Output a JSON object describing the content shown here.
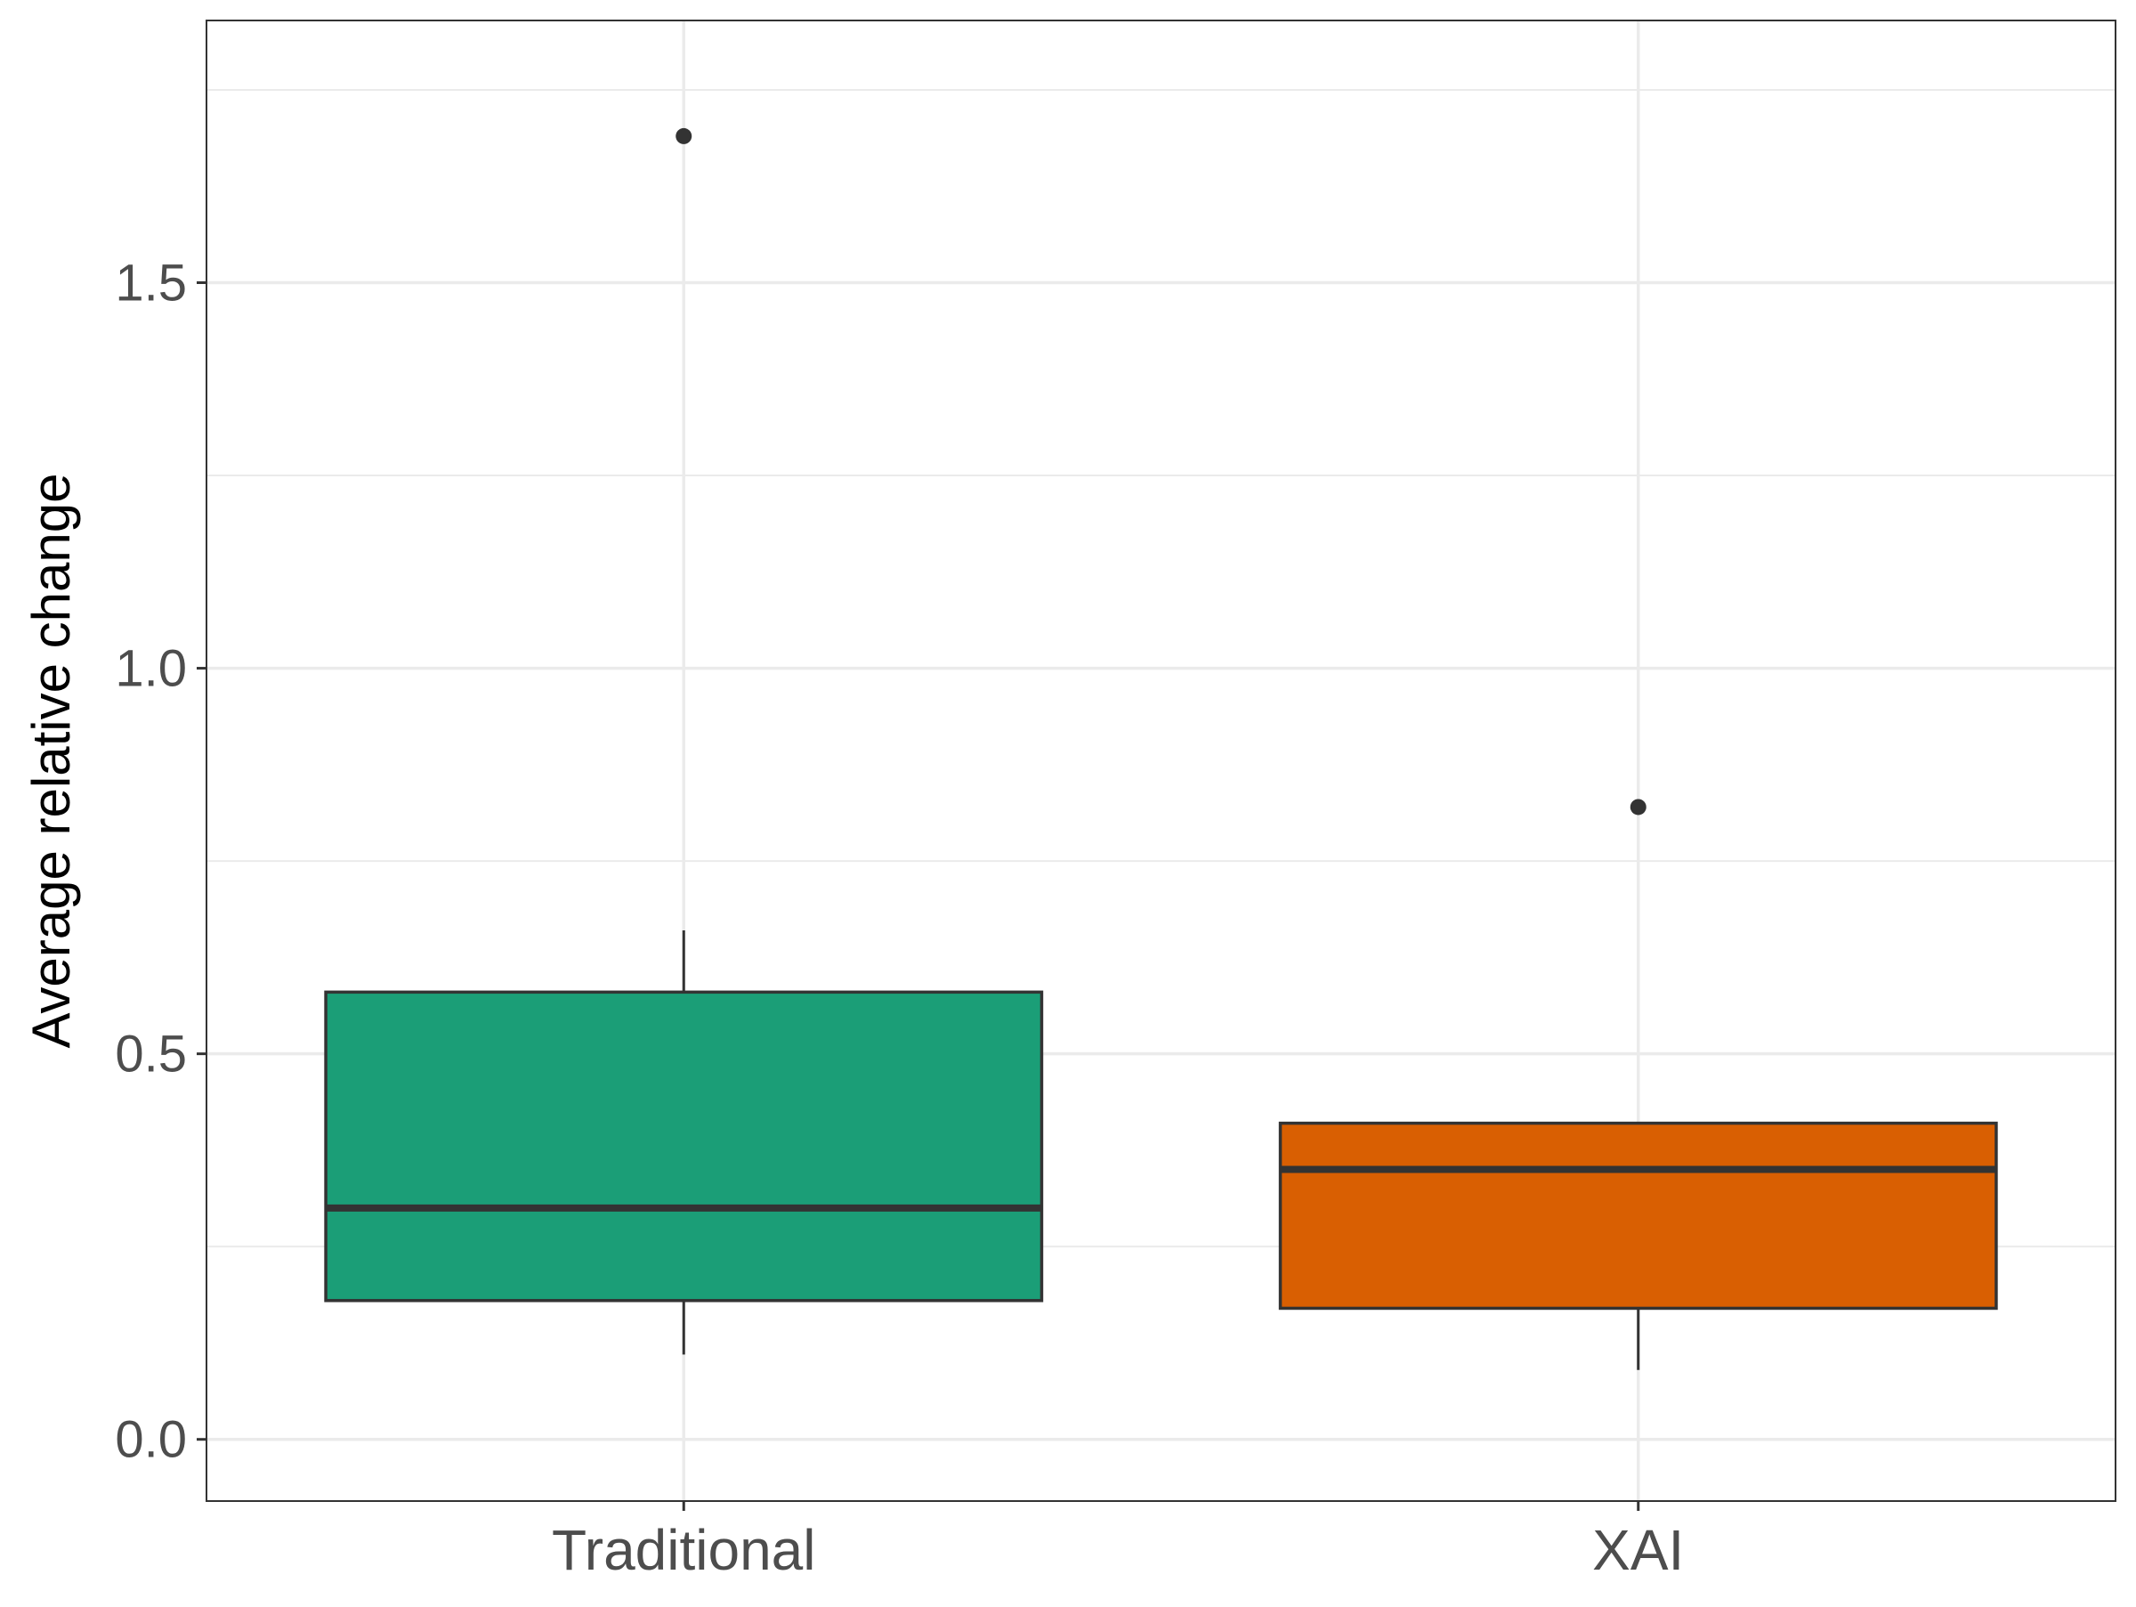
{
  "chart_data": {
    "type": "boxplot",
    "title": "",
    "xlabel": "",
    "ylabel": "Average relative change",
    "ylim": [
      -0.08,
      1.84
    ],
    "yticks": [
      0.0,
      0.5,
      1.0,
      1.5
    ],
    "ytick_labels": [
      "0.0",
      "0.5",
      "1.0",
      "1.5"
    ],
    "minor_yticks": [
      0.25,
      0.75,
      1.25,
      1.75
    ],
    "grid": true,
    "legend": "none",
    "categories": [
      "Traditional",
      "XAI"
    ],
    "boxes": [
      {
        "category": "Traditional",
        "color": "#1b9e77",
        "whisker_low": 0.11,
        "q1": 0.18,
        "median": 0.3,
        "q3": 0.58,
        "whisker_high": 0.66,
        "outliers": [
          1.69
        ]
      },
      {
        "category": "XAI",
        "color": "#d95f02",
        "whisker_low": 0.09,
        "q1": 0.17,
        "median": 0.35,
        "q3": 0.41,
        "whisker_high": 0.41,
        "outliers": [
          0.82
        ]
      }
    ]
  }
}
